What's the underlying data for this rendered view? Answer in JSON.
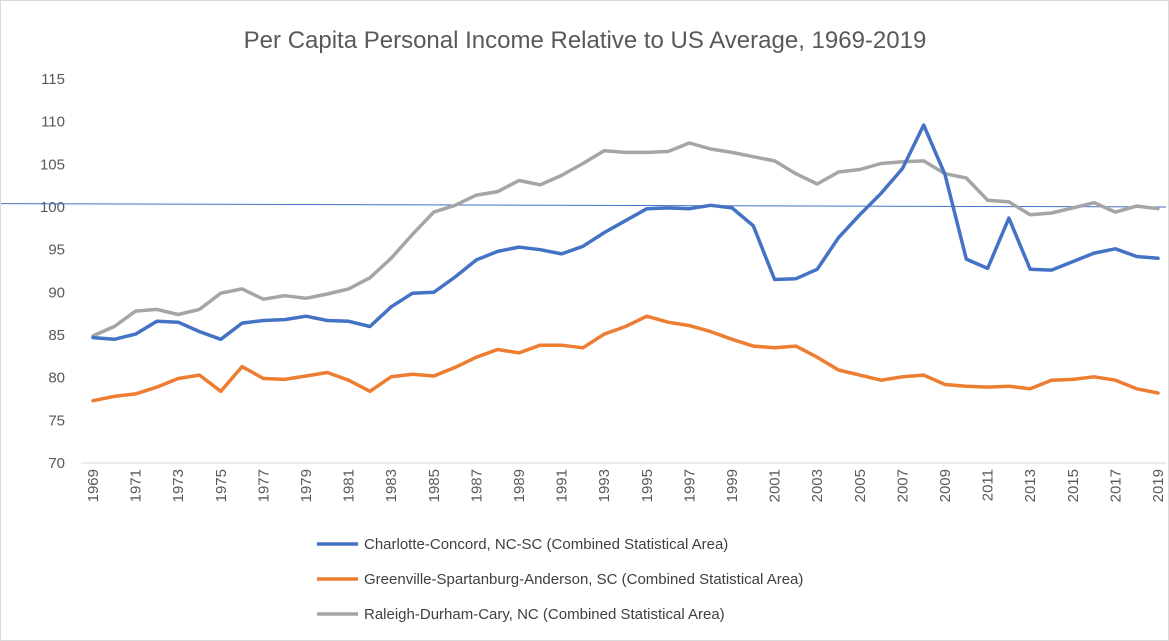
{
  "chart_data": {
    "type": "line",
    "title": "Per Capita Personal Income Relative to US Average, 1969-2019",
    "xlabel": "",
    "ylabel": "",
    "ylim": [
      70,
      115
    ],
    "yticks": [
      "70",
      "75",
      "80",
      "85",
      "90",
      "95",
      "100",
      "105",
      "110",
      "115"
    ],
    "xticks": [
      "1969",
      "1971",
      "1973",
      "1975",
      "1977",
      "1979",
      "1981",
      "1983",
      "1985",
      "1987",
      "1989",
      "1991",
      "1993",
      "1995",
      "1997",
      "1999",
      "2001",
      "2003",
      "2005",
      "2007",
      "2009",
      "2011",
      "2013",
      "2015",
      "2017",
      "2019"
    ],
    "x": [
      1969,
      1970,
      1971,
      1972,
      1973,
      1974,
      1975,
      1976,
      1977,
      1978,
      1979,
      1980,
      1981,
      1982,
      1983,
      1984,
      1985,
      1986,
      1987,
      1988,
      1989,
      1990,
      1991,
      1992,
      1993,
      1994,
      1995,
      1996,
      1997,
      1998,
      1999,
      2000,
      2001,
      2002,
      2003,
      2004,
      2005,
      2006,
      2007,
      2008,
      2009,
      2010,
      2011,
      2012,
      2013,
      2014,
      2015,
      2016,
      2017,
      2018,
      2019
    ],
    "grid": false,
    "legend_position": "bottom",
    "reference_line": {
      "y_start": 100.4,
      "y_end": 100.0,
      "color": "#4472c4"
    },
    "series": [
      {
        "name": "Charlotte-Concord, NC-SC (Combined Statistical Area)",
        "color": "#4472c4",
        "values": [
          84.7,
          84.5,
          85.1,
          86.6,
          86.5,
          85.4,
          84.5,
          86.4,
          86.7,
          86.8,
          87.2,
          86.7,
          86.6,
          86.0,
          88.3,
          89.9,
          90.0,
          91.8,
          93.8,
          94.8,
          95.3,
          95.0,
          94.5,
          95.4,
          97.0,
          98.4,
          99.8,
          99.9,
          99.8,
          100.2,
          99.9,
          97.8,
          91.5,
          91.6,
          92.7,
          96.4,
          99.1,
          101.6,
          104.5,
          109.6,
          103.8,
          93.9,
          92.8,
          98.7,
          92.7,
          92.6,
          93.6,
          94.6,
          95.1,
          94.2,
          94.0
        ]
      },
      {
        "name": "Greenville-Spartanburg-Anderson, SC (Combined Statistical Area)",
        "color": "#ed7d31",
        "values": [
          77.3,
          77.8,
          78.1,
          78.9,
          79.9,
          80.3,
          78.4,
          81.3,
          79.9,
          79.8,
          80.2,
          80.6,
          79.7,
          78.4,
          80.1,
          80.4,
          80.2,
          81.2,
          82.4,
          83.3,
          82.9,
          83.8,
          83.8,
          83.5,
          85.1,
          86.0,
          87.2,
          86.5,
          86.1,
          85.4,
          84.5,
          83.7,
          83.5,
          83.7,
          82.4,
          80.9,
          80.3,
          79.7,
          80.1,
          80.3,
          79.2,
          79.0,
          78.9,
          79.0,
          78.7,
          79.7,
          79.8,
          80.1,
          79.7,
          78.7,
          78.2
        ]
      },
      {
        "name": "Raleigh-Durham-Cary, NC (Combined Statistical Area)",
        "color": "#a5a5a5",
        "values": [
          84.9,
          86.0,
          87.8,
          88.0,
          87.4,
          88.0,
          89.9,
          90.4,
          89.2,
          89.6,
          89.3,
          89.8,
          90.4,
          91.7,
          94.0,
          96.8,
          99.4,
          100.2,
          101.4,
          101.8,
          103.1,
          102.6,
          103.7,
          105.1,
          106.6,
          106.4,
          106.4,
          106.5,
          107.5,
          106.8,
          106.4,
          105.9,
          105.4,
          103.9,
          102.7,
          104.1,
          104.4,
          105.1,
          105.3,
          105.4,
          103.9,
          103.4,
          100.8,
          100.6,
          99.1,
          99.3,
          99.9,
          100.5,
          99.4,
          100.1,
          99.8
        ]
      }
    ]
  }
}
